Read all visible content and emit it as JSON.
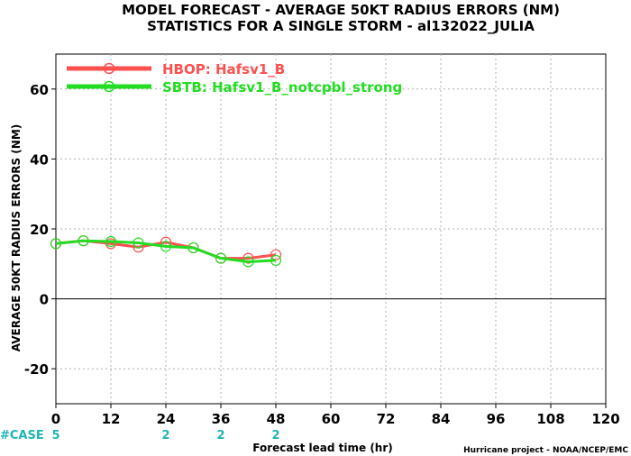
{
  "chart_data": {
    "type": "line",
    "title": "MODEL FORECAST - AVERAGE 50KT RADIUS ERRORS (NM)",
    "subtitle": "STATISTICS FOR A SINGLE STORM - al132022_JULIA",
    "xlabel": "Forecast lead time (hr)",
    "ylabel": "AVERAGE 50KT RADIUS ERRORS (NM)",
    "xlim": [
      0,
      120
    ],
    "ylim": [
      -30,
      70
    ],
    "xticks": [
      0,
      12,
      24,
      36,
      48,
      60,
      72,
      84,
      96,
      108,
      120
    ],
    "yticks": [
      -20,
      0,
      20,
      40,
      60
    ],
    "grid": true,
    "legend_position": "top-left",
    "x": [
      0,
      6,
      12,
      18,
      24,
      30,
      36,
      42,
      48
    ],
    "series": [
      {
        "name": "HBOP: Hafsv1_B",
        "color": "#ff5050",
        "values": [
          15.8,
          16.6,
          15.8,
          14.8,
          16.2,
          14.6,
          11.6,
          11.6,
          12.6
        ]
      },
      {
        "name": "SBTB: Hafsv1_B_notcpbl_strong",
        "color": "#22dd22",
        "values": [
          15.8,
          16.6,
          16.4,
          16.0,
          15.0,
          14.6,
          11.6,
          10.6,
          11.0
        ]
      }
    ],
    "cases": {
      "label": "#CASE",
      "entries": [
        {
          "x": 0,
          "count": "5"
        },
        {
          "x": 24,
          "count": "2"
        },
        {
          "x": 36,
          "count": "2"
        },
        {
          "x": 48,
          "count": "2"
        }
      ]
    },
    "credit": "Hurricane project - NOAA/NCEP/EMC"
  }
}
